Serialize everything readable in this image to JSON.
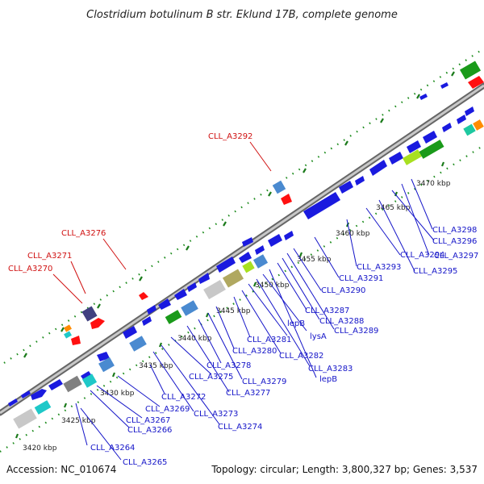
{
  "title": "Clostridium botulinum B str. Eklund 17B, complete genome",
  "footer": {
    "accession": "Accession: NC_010674",
    "summary": "Topology: circular; Length: 3,800,327 bp; Genes: 3,537"
  },
  "kbp_ticks": [
    "3420 kbp",
    "3425 kbp",
    "3430 kbp",
    "3435 kbp",
    "3440 kbp",
    "3445 kbp",
    "3450 kbp",
    "3455 kbp",
    "3460 kbp",
    "3465 kbp",
    "3470 kbp"
  ],
  "gene_labels_blue": [
    "CLL_A3264",
    "CLL_A3265",
    "CLL_A3266",
    "CLL_A3267",
    "CLL_A3269",
    "CLL_A3272",
    "CLL_A3273",
    "CLL_A3274",
    "CLL_A3275",
    "CLL_A3277",
    "CLL_A3278",
    "CLL_A3279",
    "CLL_A3280",
    "CLL_A3281",
    "CLL_A3282",
    "CLL_A3283",
    "lepB",
    "lysA",
    "lepB",
    "CLL_A3287",
    "CLL_A3288",
    "CLL_A3289",
    "CLL_A3290",
    "CLL_A3291",
    "CLL_A3293",
    "CLL_A3294",
    "CLL_A3295",
    "CLL_A3296",
    "CLL_A3297",
    "CLL_A3298"
  ],
  "gene_labels_red": [
    "CLL_A3270",
    "CLL_A3271",
    "CLL_A3276",
    "CLL_A3292"
  ],
  "colors": {
    "backbone": "#8c8c8c",
    "gene_blue": "#1a1adf",
    "gene_red": "#ff1010",
    "tick_green": "#1a7a1a",
    "label_blue": "#1414c8",
    "label_red": "#d01010"
  }
}
